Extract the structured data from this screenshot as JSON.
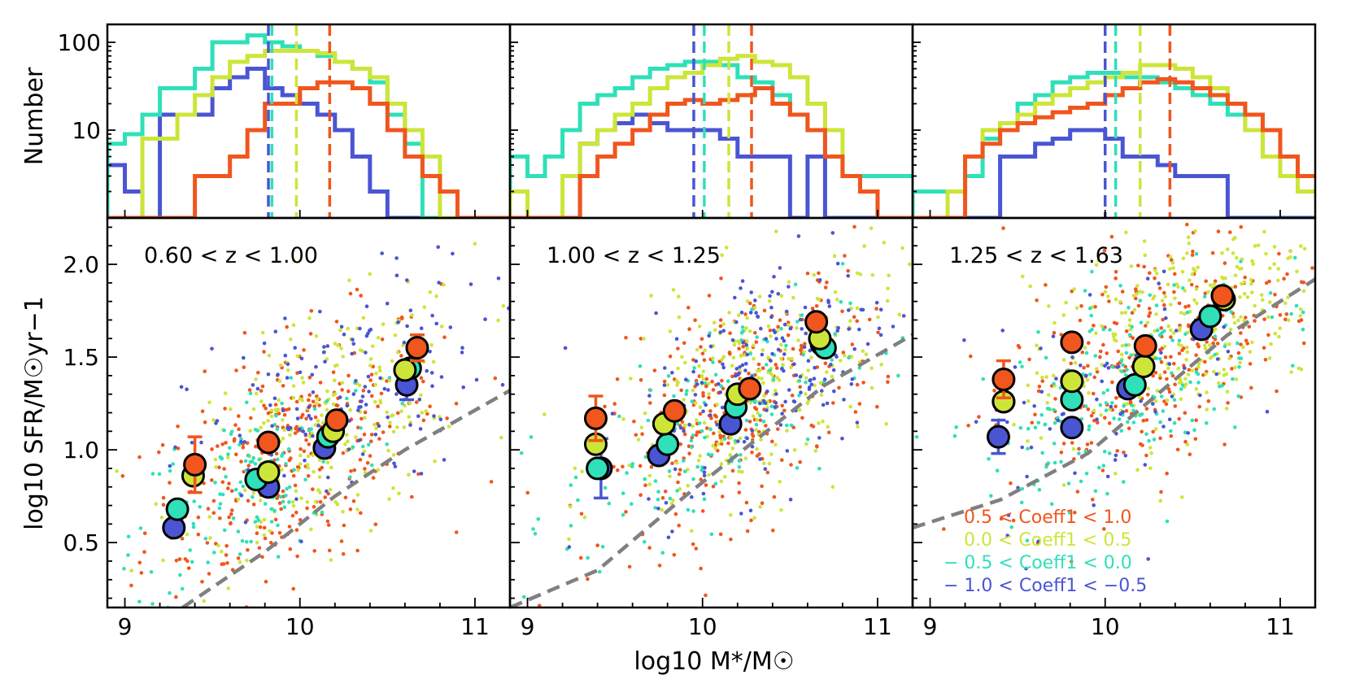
{
  "figure": {
    "ylabel_top": "Number",
    "ylabel_bottom": "log10 SFR/M☉yr−1",
    "xlabel": "log10 M*/M☉"
  },
  "legend": [
    {
      "label": "0.5 < Coeff1 < 1.0",
      "color": "#F0561D"
    },
    {
      "label": "0.0 < Coeff1 < 0.5",
      "color": "#CDE539"
    },
    {
      "label": "− 0.5 < Coeff1 < 0.0",
      "color": "#2FE0B8"
    },
    {
      "label": "− 1.0 < Coeff1 < −0.5",
      "color": "#4A55D3"
    }
  ],
  "colors": {
    "orange": "#F0561D",
    "yellowgreen": "#CDE539",
    "turquoise": "#2FE0B8",
    "blue": "#4A55D3",
    "dashed": "#808080"
  },
  "chart_data": [
    {
      "type": "histogram",
      "panel": "top-1",
      "ylabel": "Number",
      "yscale": "log",
      "ylim": [
        1,
        160
      ],
      "xlim": [
        8.9,
        11.2
      ],
      "yticks": [
        "10",
        "100"
      ],
      "bin_edges": [
        8.9,
        9.0,
        9.1,
        9.2,
        9.3,
        9.4,
        9.5,
        9.6,
        9.7,
        9.8,
        9.9,
        10.0,
        10.1,
        10.2,
        10.3,
        10.4,
        10.5,
        10.6,
        10.7,
        10.8,
        10.9,
        11.0,
        11.1,
        11.2
      ],
      "series": [
        {
          "name": "0.5 < Coeff1 < 1.0",
          "values": [
            1,
            1,
            1,
            1,
            1,
            3,
            3,
            5,
            10,
            20,
            20,
            30,
            35,
            35,
            30,
            20,
            10,
            5,
            3,
            2,
            1,
            1,
            1
          ],
          "median": 10.17
        },
        {
          "name": "0.0 < Coeff1 < 0.5",
          "values": [
            1,
            1,
            8,
            8,
            15,
            25,
            40,
            60,
            70,
            80,
            80,
            80,
            75,
            60,
            50,
            40,
            20,
            10,
            5,
            1,
            1,
            1,
            1
          ],
          "median": 9.98
        },
        {
          "name": "− 0.5 < Coeff1 < 0.0",
          "values": [
            7,
            9,
            15,
            30,
            30,
            50,
            100,
            100,
            120,
            100,
            90,
            80,
            70,
            60,
            50,
            35,
            15,
            7,
            1,
            1,
            1,
            1,
            1
          ],
          "median": 9.84
        },
        {
          "name": "− 1.0 < Coeff1 < −0.5",
          "values": [
            4,
            2,
            1,
            15,
            15,
            15,
            30,
            40,
            50,
            30,
            25,
            20,
            15,
            10,
            5,
            2,
            1,
            1,
            1,
            1,
            1,
            1,
            1
          ],
          "median": 9.82
        }
      ]
    },
    {
      "type": "histogram",
      "panel": "top-2",
      "yscale": "log",
      "ylim": [
        1,
        160
      ],
      "xlim": [
        8.9,
        11.2
      ],
      "bin_edges": [
        8.9,
        9.0,
        9.1,
        9.2,
        9.3,
        9.4,
        9.5,
        9.6,
        9.7,
        9.8,
        9.9,
        10.0,
        10.1,
        10.2,
        10.3,
        10.4,
        10.5,
        10.6,
        10.7,
        10.8,
        10.9,
        11.0,
        11.1,
        11.2
      ],
      "series": [
        {
          "name": "0.5 < Coeff1 < 1.0",
          "values": [
            1,
            1,
            1,
            1,
            3,
            5,
            7,
            10,
            15,
            20,
            22,
            20,
            22,
            25,
            30,
            20,
            15,
            10,
            5,
            3,
            2,
            1,
            1
          ],
          "median": 10.28
        },
        {
          "name": "0.0 < Coeff1 < 0.5",
          "values": [
            2,
            1,
            1,
            3,
            7,
            10,
            15,
            20,
            30,
            40,
            45,
            55,
            65,
            70,
            60,
            55,
            40,
            20,
            10,
            3,
            2,
            1,
            1
          ],
          "median": 10.15
        },
        {
          "name": "− 0.5 < Coeff1 < 0.0",
          "values": [
            5,
            3,
            5,
            10,
            20,
            25,
            30,
            40,
            50,
            55,
            60,
            60,
            55,
            40,
            35,
            25,
            15,
            10,
            5,
            3,
            3,
            3,
            3
          ],
          "median": 10.01
        },
        {
          "name": "− 1.0 < Coeff1 < −0.5",
          "values": [
            1,
            1,
            1,
            1,
            7,
            10,
            12,
            15,
            12,
            10,
            10,
            10,
            8,
            5,
            5,
            5,
            1,
            5,
            1,
            1,
            1,
            1,
            1
          ],
          "median": 9.95
        }
      ]
    },
    {
      "type": "histogram",
      "panel": "top-3",
      "yscale": "log",
      "ylim": [
        1,
        160
      ],
      "xlim": [
        8.9,
        11.2
      ],
      "bin_edges": [
        8.9,
        9.0,
        9.1,
        9.2,
        9.3,
        9.4,
        9.5,
        9.6,
        9.7,
        9.8,
        9.9,
        10.0,
        10.1,
        10.2,
        10.3,
        10.4,
        10.5,
        10.6,
        10.7,
        10.8,
        10.9,
        11.0,
        11.1,
        11.2
      ],
      "series": [
        {
          "name": "0.5 < Coeff1 < 1.0",
          "values": [
            1,
            1,
            1,
            5,
            7,
            10,
            12,
            14,
            16,
            18,
            20,
            25,
            30,
            35,
            38,
            35,
            30,
            25,
            20,
            15,
            10,
            5,
            3
          ],
          "median": 10.37
        },
        {
          "name": "0.0 < Coeff1 < 0.5",
          "values": [
            1,
            1,
            2,
            5,
            10,
            12,
            15,
            20,
            25,
            30,
            35,
            40,
            45,
            55,
            55,
            50,
            40,
            30,
            20,
            10,
            5,
            3,
            2
          ],
          "median": 10.2
        },
        {
          "name": "− 0.5 < Coeff1 < 0.0",
          "values": [
            2,
            2,
            2,
            3,
            8,
            12,
            20,
            25,
            35,
            40,
            45,
            45,
            40,
            40,
            35,
            30,
            25,
            20,
            15,
            10,
            5,
            5,
            3
          ],
          "median": 10.06
        },
        {
          "name": "− 1.0 < Coeff1 < −0.5",
          "values": [
            1,
            1,
            1,
            1,
            1,
            5,
            5,
            7,
            8,
            10,
            10,
            8,
            5,
            5,
            4,
            3,
            3,
            3,
            1,
            1,
            1,
            1,
            1
          ],
          "median": 10.0
        }
      ]
    },
    {
      "type": "scatter",
      "panel": "bottom-1",
      "annotation": "0.60 < z < 1.00",
      "ylabel": "log10 SFR/M☉yr−1",
      "xlim": [
        8.9,
        11.2
      ],
      "ylim": [
        0.15,
        2.25
      ],
      "xticks": [
        "9",
        "10",
        "11"
      ],
      "yticks": [
        "0.5",
        "1.0",
        "1.5",
        "2.0"
      ],
      "medians": [
        {
          "name": "0.5 < Coeff1 < 1.0",
          "x": [
            9.4,
            9.82,
            10.21,
            10.67
          ],
          "y": [
            0.92,
            1.04,
            1.16,
            1.55
          ],
          "err": [
            0.15,
            0.0,
            0.0,
            0.07
          ]
        },
        {
          "name": "0.0 < Coeff1 < 0.5",
          "x": [
            9.39,
            9.82,
            10.19,
            10.6
          ],
          "y": [
            0.86,
            0.88,
            1.1,
            1.43
          ],
          "err": [
            0.0,
            0.0,
            0.0,
            0.0
          ]
        },
        {
          "name": "− 0.5 < Coeff1 < 0.0",
          "x": [
            9.3,
            9.75,
            10.16,
            10.63
          ],
          "y": [
            0.68,
            0.84,
            1.07,
            1.44
          ],
          "err": [
            0.0,
            0.0,
            0.0,
            0.0
          ]
        },
        {
          "name": "− 1.0 < Coeff1 < −0.5",
          "x": [
            9.28,
            9.82,
            10.14,
            10.61
          ],
          "y": [
            0.58,
            0.8,
            1.01,
            1.35
          ],
          "err": [
            0.0,
            0.0,
            0.0,
            0.08
          ]
        }
      ],
      "dashed_line": {
        "x": [
          9.33,
          9.8,
          10.2,
          10.6,
          11.2
        ],
        "y": [
          0.15,
          0.45,
          0.75,
          1.0,
          1.32
        ]
      },
      "cloud": [
        {
          "cx": 9.95,
          "cy": 0.95,
          "sx": 0.42,
          "sy": 0.32,
          "slope": 0.45,
          "n": 330
        },
        {
          "cx": 10.15,
          "cy": 1.12,
          "sx": 0.42,
          "sy": 0.3,
          "slope": 0.45,
          "n": 260
        },
        {
          "cx": 9.75,
          "cy": 0.85,
          "sx": 0.35,
          "sy": 0.25,
          "slope": 0.45,
          "n": 140
        },
        {
          "cx": 10.2,
          "cy": 1.25,
          "sx": 0.42,
          "sy": 0.3,
          "slope": 0.4,
          "n": 160
        }
      ]
    },
    {
      "type": "scatter",
      "panel": "bottom-2",
      "annotation": "1.00 < z < 1.25",
      "xlim": [
        8.9,
        11.2
      ],
      "ylim": [
        0.15,
        2.25
      ],
      "xticks": [
        "9",
        "10",
        "11"
      ],
      "medians": [
        {
          "name": "0.5 < Coeff1 < 1.0",
          "x": [
            9.39,
            9.84,
            10.27,
            10.65
          ],
          "y": [
            1.17,
            1.21,
            1.33,
            1.69
          ],
          "err": [
            0.12,
            0.0,
            0.0,
            0.0
          ]
        },
        {
          "name": "0.0 < Coeff1 < 0.5",
          "x": [
            9.39,
            9.78,
            10.2,
            10.67
          ],
          "y": [
            1.03,
            1.14,
            1.3,
            1.6
          ],
          "err": [
            0.0,
            0.0,
            0.0,
            0.0
          ]
        },
        {
          "name": "− 0.5 < Coeff1 < 0.0",
          "x": [
            9.4,
            9.8,
            10.19,
            10.7
          ],
          "y": [
            0.9,
            1.03,
            1.23,
            1.55
          ],
          "err": [
            0.0,
            0.0,
            0.0,
            0.0
          ]
        },
        {
          "name": "− 1.0 < Coeff1 < −0.5",
          "x": [
            9.42,
            9.75,
            10.16,
            10.68
          ],
          "y": [
            0.9,
            0.97,
            1.14,
            1.57
          ],
          "err": [
            0.16,
            0.0,
            0.0,
            0.0
          ]
        }
      ],
      "dashed_line": {
        "x": [
          8.9,
          9.4,
          9.9,
          10.3,
          10.7,
          11.2
        ],
        "y": [
          0.15,
          0.35,
          0.75,
          1.05,
          1.35,
          1.62
        ]
      },
      "cloud": [
        {
          "cx": 10.2,
          "cy": 1.25,
          "sx": 0.4,
          "sy": 0.3,
          "slope": 0.5,
          "n": 300
        },
        {
          "cx": 10.3,
          "cy": 1.35,
          "sx": 0.4,
          "sy": 0.3,
          "slope": 0.45,
          "n": 280
        },
        {
          "cx": 10.0,
          "cy": 1.1,
          "sx": 0.4,
          "sy": 0.25,
          "slope": 0.5,
          "n": 160
        },
        {
          "cx": 10.4,
          "cy": 1.45,
          "sx": 0.35,
          "sy": 0.3,
          "slope": 0.45,
          "n": 200
        }
      ]
    },
    {
      "type": "scatter",
      "panel": "bottom-3",
      "annotation": "1.25 < z < 1.63",
      "xlim": [
        8.9,
        11.2
      ],
      "ylim": [
        0.15,
        2.25
      ],
      "xticks": [
        "9",
        "10",
        "11"
      ],
      "medians": [
        {
          "name": "0.5 < Coeff1 < 1.0",
          "x": [
            9.42,
            9.81,
            10.23,
            10.67
          ],
          "y": [
            1.38,
            1.58,
            1.56,
            1.83
          ],
          "err": [
            0.1,
            0.0,
            0.0,
            0.0
          ]
        },
        {
          "name": "0.0 < Coeff1 < 0.5",
          "x": [
            9.42,
            9.81,
            10.22,
            10.68
          ],
          "y": [
            1.26,
            1.37,
            1.45,
            1.81
          ],
          "err": [
            0.0,
            0.0,
            0.0,
            0.0
          ]
        },
        {
          "name": "− 0.5 < Coeff1 < 0.0",
          "x": [
            9.42,
            9.81,
            10.17,
            10.6
          ],
          "y": [
            1.26,
            1.27,
            1.35,
            1.72
          ],
          "err": [
            0.0,
            0.0,
            0.0,
            0.0
          ]
        },
        {
          "name": "− 1.0 < Coeff1 < −0.5",
          "x": [
            9.39,
            9.81,
            10.13,
            10.55
          ],
          "y": [
            1.07,
            1.12,
            1.33,
            1.65
          ],
          "err": [
            0.09,
            0.0,
            0.0,
            0.05
          ]
        }
      ],
      "dashed_line": {
        "x": [
          8.9,
          9.4,
          9.9,
          10.3,
          10.7,
          11.2
        ],
        "y": [
          0.58,
          0.73,
          0.98,
          1.3,
          1.62,
          1.92
        ]
      },
      "cloud": [
        {
          "cx": 10.25,
          "cy": 1.5,
          "sx": 0.42,
          "sy": 0.3,
          "slope": 0.45,
          "n": 300
        },
        {
          "cx": 10.4,
          "cy": 1.65,
          "sx": 0.42,
          "sy": 0.3,
          "slope": 0.4,
          "n": 320
        },
        {
          "cx": 10.1,
          "cy": 1.35,
          "sx": 0.4,
          "sy": 0.28,
          "slope": 0.45,
          "n": 200
        },
        {
          "cx": 10.0,
          "cy": 1.25,
          "sx": 0.4,
          "sy": 0.3,
          "slope": 0.4,
          "n": 80
        }
      ]
    }
  ]
}
